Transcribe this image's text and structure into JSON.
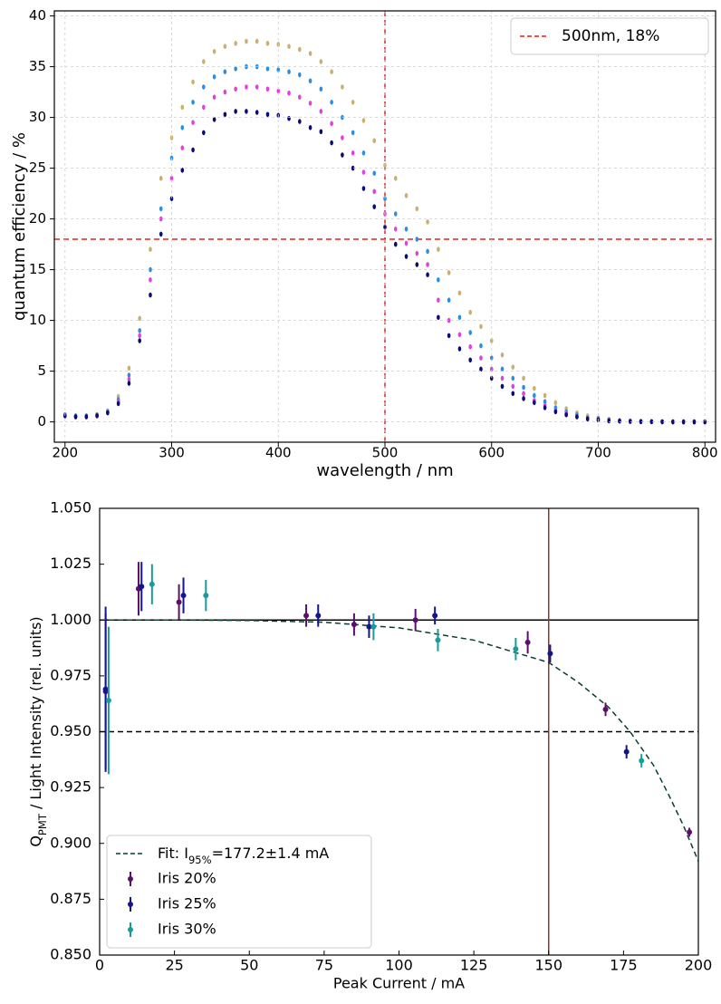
{
  "chart_data": [
    {
      "type": "scatter",
      "xlabel": "wavelength / nm",
      "ylabel": "quantum efficiency / %",
      "xlim": [
        190,
        810
      ],
      "xticks": [
        200,
        300,
        400,
        500,
        600,
        700,
        800
      ],
      "ylim": [
        -2,
        40.5
      ],
      "yticks": [
        0,
        5,
        10,
        15,
        20,
        25,
        30,
        35,
        40
      ],
      "grid": true,
      "x": [
        200,
        210,
        220,
        230,
        240,
        250,
        260,
        270,
        280,
        290,
        300,
        310,
        320,
        330,
        340,
        350,
        360,
        370,
        380,
        390,
        400,
        410,
        420,
        430,
        440,
        450,
        460,
        470,
        480,
        490,
        500,
        510,
        520,
        530,
        540,
        550,
        560,
        570,
        580,
        590,
        600,
        610,
        620,
        630,
        640,
        650,
        660,
        670,
        680,
        690,
        700,
        710,
        720,
        730,
        740,
        750,
        760,
        770,
        780,
        790,
        800
      ],
      "series": [
        {
          "color": "#c8b070",
          "values": [
            0.7,
            0.6,
            0.6,
            0.7,
            1.1,
            2.5,
            5.3,
            10.2,
            17,
            24,
            28,
            31,
            33.5,
            35.5,
            36.5,
            37,
            37.3,
            37.5,
            37.5,
            37.3,
            37.2,
            37,
            36.7,
            36.3,
            35.5,
            34.5,
            33,
            31.5,
            29.7,
            27.7,
            25.3,
            24,
            22.3,
            21,
            19.7,
            17,
            14.7,
            12.7,
            10.8,
            9.4,
            8,
            6.6,
            5.4,
            4.3,
            3.3,
            2.6,
            1.9,
            1.3,
            0.9,
            0.6,
            0.4,
            0.25,
            0.15,
            0.1,
            0.06,
            0.04,
            0.02,
            0.01,
            0,
            0,
            0
          ]
        },
        {
          "color": "#2a8fe0",
          "values": [
            0.7,
            0.6,
            0.6,
            0.7,
            1,
            2.2,
            4.6,
            9,
            15,
            21,
            26,
            29,
            31.5,
            33,
            34,
            34.5,
            34.8,
            35,
            35,
            34.8,
            34.7,
            34.5,
            34.2,
            33.6,
            32.8,
            31.5,
            30,
            28.5,
            26.5,
            24.5,
            22,
            20.5,
            19,
            18,
            16.8,
            14,
            12,
            10.3,
            8.8,
            7.5,
            6.3,
            5.2,
            4.3,
            3.4,
            2.6,
            2,
            1.4,
            1,
            0.7,
            0.4,
            0.3,
            0.2,
            0.1,
            0.07,
            0.04,
            0.03,
            0.02,
            0.01,
            0,
            0,
            0
          ]
        },
        {
          "color": "#e040e0",
          "values": [
            0.6,
            0.5,
            0.5,
            0.6,
            0.9,
            2,
            4.2,
            8.5,
            14,
            20,
            24,
            27,
            29.5,
            31,
            32,
            32.5,
            32.8,
            33,
            33,
            32.8,
            32.6,
            32.4,
            32,
            31.4,
            30.6,
            29.4,
            28,
            26.5,
            24.6,
            22.7,
            20.5,
            19,
            17.6,
            16.6,
            15.5,
            12,
            10,
            8.6,
            7.4,
            6.3,
            5.2,
            4.3,
            3.5,
            2.8,
            2.1,
            1.6,
            1.1,
            0.8,
            0.5,
            0.3,
            0.2,
            0.12,
            0.08,
            0.05,
            0.03,
            0.02,
            0.01,
            0,
            0,
            0,
            0
          ]
        },
        {
          "color": "#0a0a78",
          "values": [
            0.6,
            0.5,
            0.5,
            0.6,
            0.9,
            1.8,
            3.8,
            8,
            12.5,
            18.5,
            22,
            24.8,
            26.8,
            28.5,
            29.8,
            30.3,
            30.6,
            30.6,
            30.5,
            30.3,
            30.2,
            29.9,
            29.6,
            29,
            28.6,
            27.5,
            26.3,
            25,
            23,
            21.2,
            19.2,
            17.5,
            16.3,
            15.5,
            14.5,
            10.3,
            8.5,
            7.2,
            6.1,
            5.2,
            4.3,
            3.5,
            2.8,
            2.3,
            1.9,
            1.4,
            1,
            0.7,
            0.5,
            0.3,
            0.2,
            0.1,
            0.08,
            0.05,
            0.03,
            0.02,
            0.01,
            0,
            0,
            0,
            0
          ]
        }
      ],
      "vlines": [
        {
          "value": 500,
          "color": "#e8201c",
          "style": "dashed"
        }
      ],
      "hlines": [
        {
          "value": 18,
          "color": "#e8201c",
          "style": "dashed"
        }
      ],
      "reference_label": "500nm, 18%",
      "legend": "upper right"
    },
    {
      "type": "errorbar",
      "xlabel": "Peak Current / mA",
      "ylabel": [
        {
          "text": "Q"
        },
        {
          "text": "PMT",
          "sub": true
        },
        {
          "text": " / Light Intensity (rel. units)"
        }
      ],
      "xlim": [
        0,
        200
      ],
      "xticks": [
        0,
        25,
        50,
        75,
        100,
        125,
        150,
        175,
        200
      ],
      "ylim": [
        0.85,
        1.05
      ],
      "yticks": [
        {
          "value": 0.85,
          "label": "0.850"
        },
        {
          "value": 0.875,
          "label": "0.875"
        },
        {
          "value": 0.9,
          "label": "0.900"
        },
        {
          "value": 0.925,
          "label": "0.925"
        },
        {
          "value": 0.95,
          "label": "0.950"
        },
        {
          "value": 0.975,
          "label": "0.975"
        },
        {
          "value": 1.0,
          "label": "1.000"
        },
        {
          "value": 1.025,
          "label": "1.025"
        },
        {
          "value": 1.05,
          "label": "1.050"
        }
      ],
      "grid": false,
      "legend": "lower left",
      "fit": {
        "name": [
          {
            "text": "Fit: I"
          },
          {
            "text": "95%",
            "sub": true
          },
          {
            "text": "=177.2±1.4 mA"
          }
        ],
        "color": "#0c3d2c",
        "style": "dashed",
        "x": [
          0,
          25,
          50,
          75,
          100,
          125,
          150,
          160,
          170,
          177.2,
          185,
          190,
          195,
          200
        ],
        "values": [
          1.0,
          1.0,
          0.9998,
          0.999,
          0.9965,
          0.991,
          0.981,
          0.972,
          0.961,
          0.95,
          0.935,
          0.922,
          0.908,
          0.892
        ]
      },
      "series": [
        {
          "name": "Iris 20%",
          "color": "#5a0f6a",
          "x": [
            2,
            13,
            26.5,
            69,
            85,
            105.5,
            143,
            169,
            197
          ],
          "values": [
            0.968,
            1.014,
            1.008,
            1.002,
            0.998,
            1.0,
            0.99,
            0.96,
            0.905
          ],
          "errors": [
            0.035,
            0.012,
            0.008,
            0.005,
            0.005,
            0.005,
            0.005,
            0.003,
            0.002
          ]
        },
        {
          "name": "Iris 25%",
          "color": "#14148c",
          "x": [
            2,
            14,
            28,
            73,
            90,
            112,
            150.5,
            176
          ],
          "values": [
            0.969,
            1.015,
            1.011,
            1.002,
            0.997,
            1.002,
            0.985,
            0.941
          ],
          "errors": [
            0.037,
            0.011,
            0.008,
            0.005,
            0.005,
            0.004,
            0.004,
            0.003
          ]
        },
        {
          "name": "Iris 30%",
          "color": "#1a9b9b",
          "x": [
            3,
            17.5,
            35.5,
            91.5,
            113,
            139,
            181
          ],
          "values": [
            0.964,
            1.016,
            1.011,
            0.997,
            0.991,
            0.987,
            0.937
          ],
          "errors": [
            0.033,
            0.009,
            0.007,
            0.006,
            0.005,
            0.005,
            0.003
          ]
        }
      ],
      "hlines": [
        {
          "value": 1.0,
          "color": "#000000",
          "style": "solid"
        },
        {
          "value": 0.95,
          "color": "#000000",
          "style": "dashed"
        }
      ],
      "vlines": [
        {
          "value": 150,
          "color": "#8b3a2a",
          "style": "solid"
        }
      ]
    }
  ]
}
